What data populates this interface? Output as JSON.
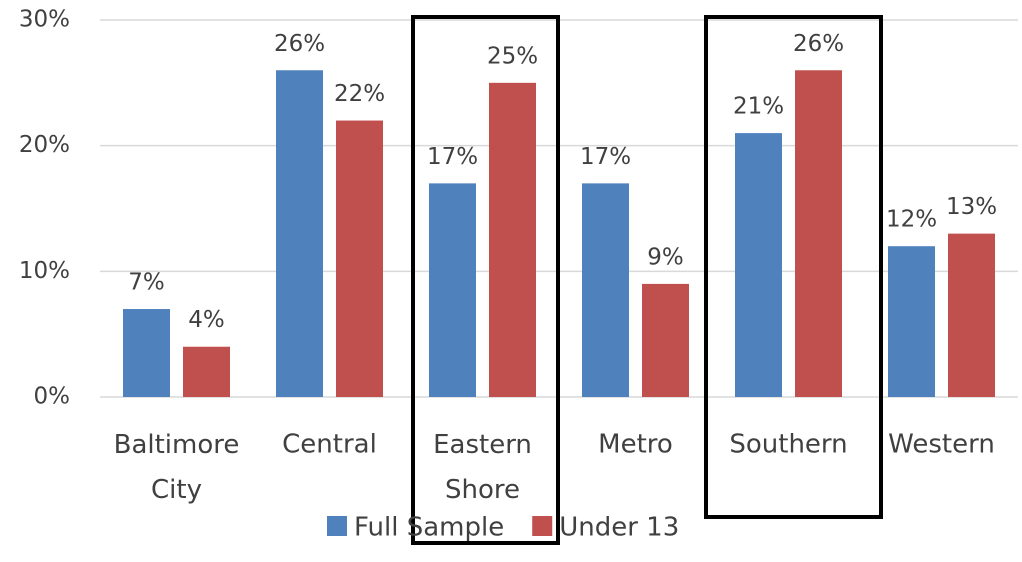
{
  "chart_data": {
    "type": "bar",
    "categories": [
      "Baltimore City",
      "Central",
      "Eastern Shore",
      "Metro",
      "Southern",
      "Western"
    ],
    "series": [
      {
        "name": "Full Sample",
        "color": "#4f81bd",
        "values": [
          7,
          26,
          17,
          17,
          21,
          12
        ],
        "value_labels": [
          "7%",
          "26%",
          "17%",
          "17%",
          "21%",
          "12%"
        ]
      },
      {
        "name": "Under 13",
        "color": "#c0504d",
        "values": [
          4,
          22,
          25,
          9,
          26,
          13
        ],
        "value_labels": [
          "4%",
          "22%",
          "25%",
          "9%",
          "26%",
          "13%"
        ]
      }
    ],
    "ylim": [
      0,
      30
    ],
    "yticks": [
      {
        "value": 0,
        "label": "0%"
      },
      {
        "value": 10,
        "label": "10%"
      },
      {
        "value": 20,
        "label": "20%"
      },
      {
        "value": 30,
        "label": "30%"
      }
    ],
    "grid": true,
    "legend": "bottom"
  }
}
